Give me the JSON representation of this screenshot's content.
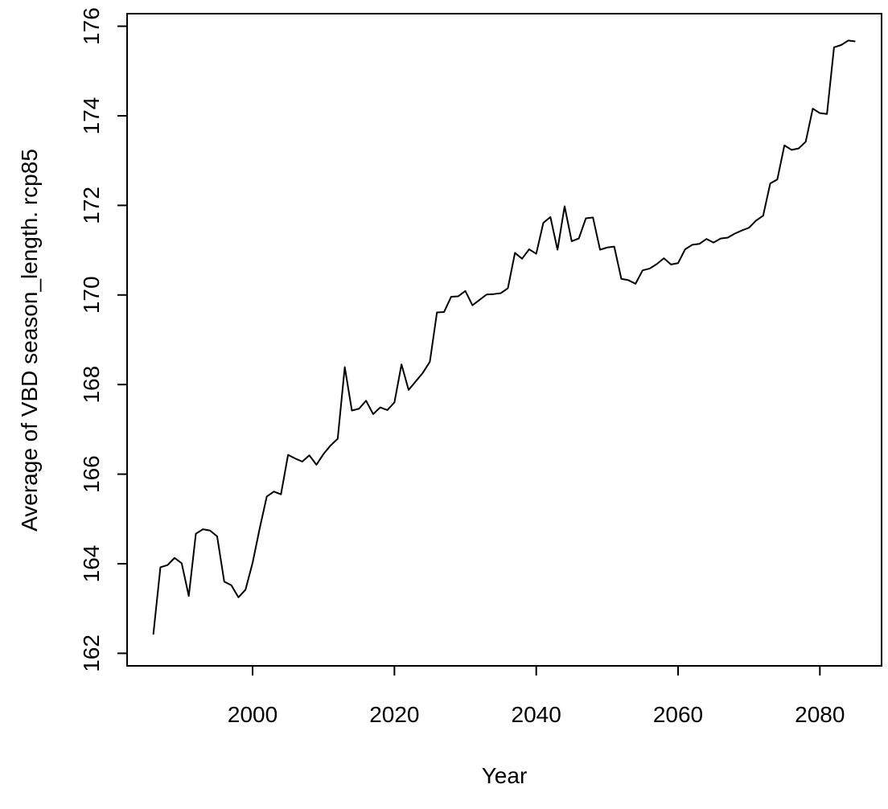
{
  "chart_data": {
    "type": "line",
    "title": "",
    "xlabel": "Year",
    "ylabel": "Average of VBD season_length. rcp85",
    "xlim": [
      1982.3,
      2088.7
    ],
    "ylim": [
      161.72,
      176.28
    ],
    "xticks": [
      2000,
      2020,
      2040,
      2060,
      2080
    ],
    "yticks": [
      162,
      164,
      166,
      168,
      170,
      172,
      174,
      176
    ],
    "grid": false,
    "legend": "none",
    "line_color": "#000000",
    "x": [
      1986,
      1987,
      1988,
      1989,
      1990,
      1991,
      1992,
      1993,
      1994,
      1995,
      1996,
      1997,
      1998,
      1999,
      2000,
      2001,
      2002,
      2003,
      2004,
      2005,
      2006,
      2007,
      2008,
      2009,
      2010,
      2011,
      2012,
      2013,
      2014,
      2015,
      2016,
      2017,
      2018,
      2019,
      2020,
      2021,
      2022,
      2023,
      2024,
      2025,
      2026,
      2027,
      2028,
      2029,
      2030,
      2031,
      2032,
      2033,
      2034,
      2035,
      2036,
      2037,
      2038,
      2039,
      2040,
      2041,
      2042,
      2043,
      2044,
      2045,
      2046,
      2047,
      2048,
      2049,
      2050,
      2051,
      2052,
      2053,
      2054,
      2055,
      2056,
      2057,
      2058,
      2059,
      2060,
      2061,
      2062,
      2063,
      2064,
      2065,
      2066,
      2067,
      2068,
      2069,
      2070,
      2071,
      2072,
      2073,
      2074,
      2075,
      2076,
      2077,
      2078,
      2079,
      2080,
      2081,
      2082,
      2083,
      2084,
      2085
    ],
    "series": [
      {
        "values": [
          162.42,
          163.92,
          163.97,
          164.13,
          164.01,
          163.28,
          164.67,
          164.77,
          164.74,
          164.61,
          163.6,
          163.52,
          163.25,
          163.42,
          164.02,
          164.79,
          165.5,
          165.61,
          165.55,
          166.43,
          166.35,
          166.28,
          166.42,
          166.21,
          166.45,
          166.64,
          166.79,
          168.39,
          167.42,
          167.46,
          167.64,
          167.34,
          167.49,
          167.43,
          167.6,
          168.45,
          167.88,
          168.07,
          168.26,
          168.51,
          169.61,
          169.62,
          169.96,
          169.97,
          170.09,
          169.77,
          169.89,
          170.01,
          170.02,
          170.04,
          170.15,
          170.94,
          170.81,
          171.02,
          170.92,
          171.61,
          171.74,
          171.01,
          171.98,
          171.2,
          171.26,
          171.71,
          171.73,
          171.01,
          171.06,
          171.08,
          170.36,
          170.33,
          170.25,
          170.55,
          170.59,
          170.69,
          170.82,
          170.68,
          170.71,
          171.02,
          171.12,
          171.14,
          171.25,
          171.17,
          171.26,
          171.28,
          171.37,
          171.44,
          171.5,
          171.66,
          171.77,
          172.49,
          172.58,
          173.34,
          173.24,
          173.27,
          173.42,
          174.16,
          174.06,
          174.04,
          175.53,
          175.58,
          175.68,
          175.66
        ]
      }
    ]
  }
}
